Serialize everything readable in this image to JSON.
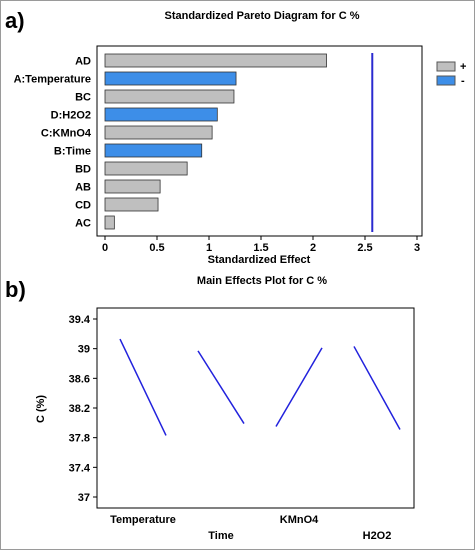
{
  "panels": {
    "a": "a)",
    "b": "b)"
  },
  "chart_data": [
    {
      "type": "bar",
      "orientation": "horizontal",
      "title": "Standardized Pareto Diagram for C %",
      "xlabel": "Standardized Effect",
      "ylabel": "",
      "xlim": [
        0,
        3
      ],
      "xticks": [
        "0",
        "0.5",
        "1",
        "1.5",
        "2",
        "2.5",
        "3"
      ],
      "categories": [
        "AD",
        "A:Temperature",
        "BC",
        "D:H2O2",
        "C:KMnO4",
        "B:Time",
        "BD",
        "AB",
        "CD",
        "AC"
      ],
      "values": [
        2.13,
        1.26,
        1.24,
        1.08,
        1.03,
        0.93,
        0.79,
        0.53,
        0.51,
        0.09
      ],
      "signs": [
        "+",
        "-",
        "+",
        "-",
        "+",
        "-",
        "+",
        "+",
        "+",
        "+"
      ],
      "reference_line": 2.57,
      "legend": [
        {
          "label": "+",
          "color": "#bfbfbf"
        },
        {
          "label": "-",
          "color": "#3d8ee8"
        }
      ],
      "colors": {
        "positive": "#bfbfbf",
        "negative": "#3d8ee8",
        "reference": "#2a2ad0"
      }
    },
    {
      "type": "line",
      "title": "Main Effects Plot for C %",
      "xlabel": "",
      "ylabel": "C (%)",
      "ylim": [
        37,
        39.4
      ],
      "yticks": [
        "39.4",
        "39",
        "38.6",
        "38.2",
        "37.8",
        "37.4",
        "37"
      ],
      "factors": [
        "Temperature",
        "Time",
        "KMnO4",
        "H2O2"
      ],
      "series": [
        {
          "values": [
            39.13,
            37.83
          ]
        },
        {
          "values": [
            38.97,
            37.99
          ]
        },
        {
          "values": [
            37.95,
            39.01
          ]
        },
        {
          "values": [
            39.03,
            37.91
          ]
        }
      ],
      "colors": {
        "line": "#2222dd"
      }
    }
  ]
}
